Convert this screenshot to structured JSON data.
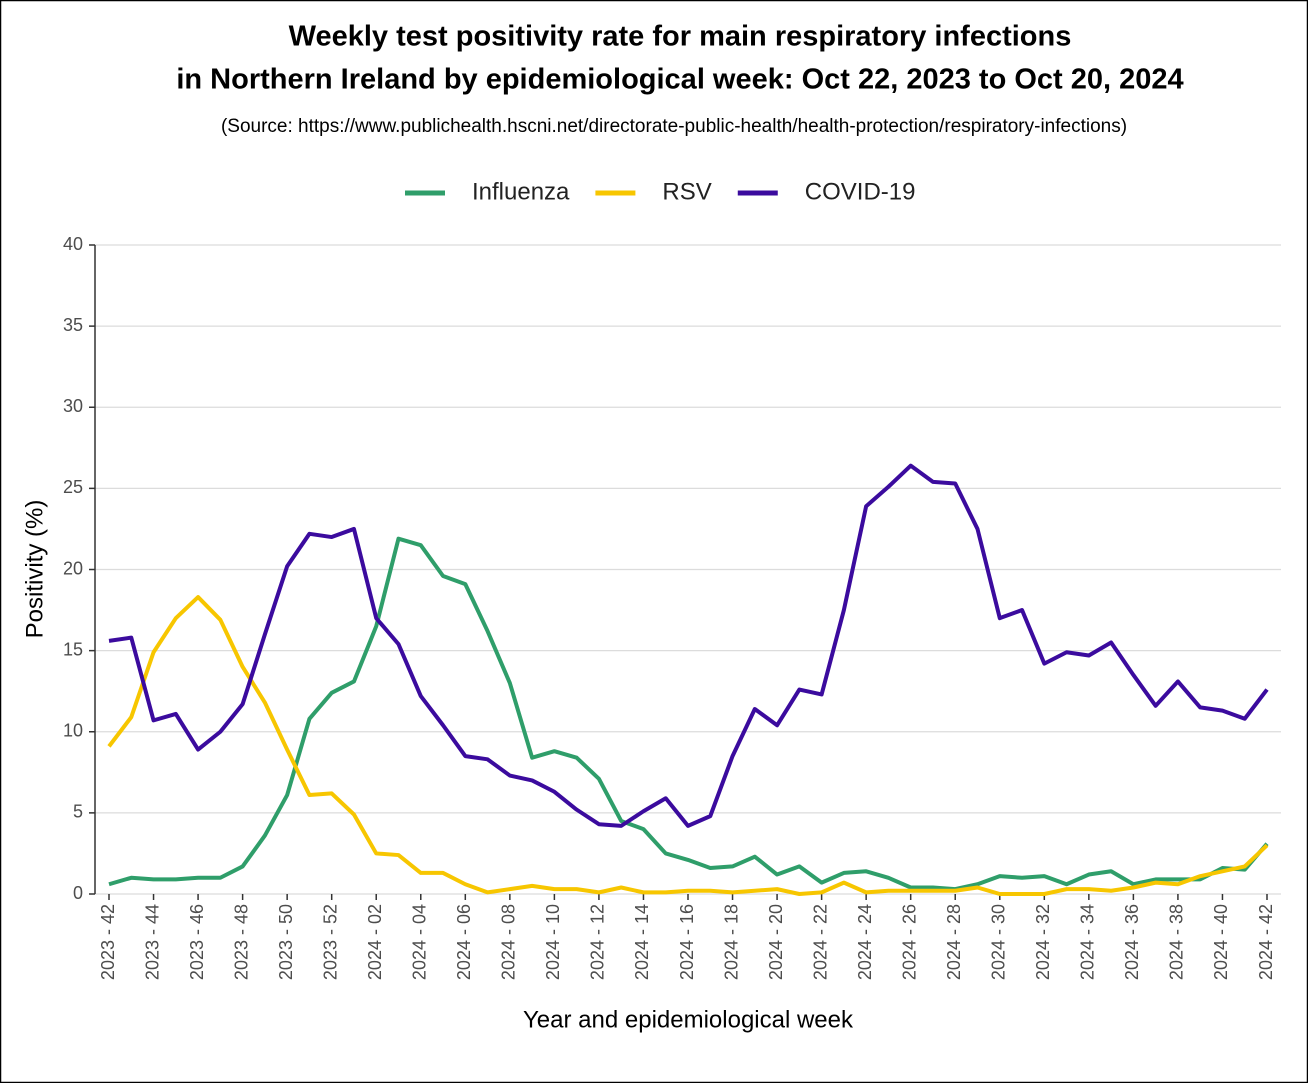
{
  "chart_data": {
    "type": "line",
    "title": [
      "Weekly test positivity rate for main respiratory infections",
      "in Northern Ireland by epidemiological week: Oct 22, 2023 to Oct 20, 2024"
    ],
    "subtitle": "(Source: https://www.publichealth.hscni.net/directorate-public-health/health-protection/respiratory-infections)",
    "x_label": "Year and epidemiological week",
    "y_label": "Positivity (%)",
    "categories": [
      "2023 - 42",
      null,
      "2023 - 44",
      null,
      "2023 - 46",
      null,
      "2023 - 48",
      null,
      "2023 - 50",
      null,
      "2023 - 52",
      null,
      "2024 - 02",
      null,
      "2024 - 04",
      null,
      "2024 - 06",
      null,
      "2024 - 08",
      null,
      "2024 - 10",
      null,
      "2024 - 12",
      null,
      "2024 - 14",
      null,
      "2024 - 16",
      null,
      "2024 - 18",
      null,
      "2024 - 20",
      null,
      "2024 - 22",
      null,
      "2024 - 24",
      null,
      "2024 - 26",
      null,
      "2024 - 28",
      null,
      "2024 - 30",
      null,
      "2024 - 32",
      null,
      "2024 - 34",
      null,
      "2024 - 36",
      null,
      "2024 - 38",
      null,
      "2024 - 40",
      null,
      "2024 - 42"
    ],
    "series": [
      {
        "name": "Influenza",
        "color": "#2f9e6a",
        "values": [
          0.6,
          1.0,
          0.9,
          0.9,
          1.0,
          1.0,
          1.7,
          3.6,
          6.1,
          10.8,
          12.4,
          13.1,
          16.5,
          21.9,
          21.5,
          19.6,
          19.1,
          16.2,
          13.0,
          8.4,
          8.8,
          8.4,
          7.1,
          4.5,
          4.0,
          2.5,
          2.1,
          1.6,
          1.7,
          2.3,
          1.2,
          1.7,
          0.7,
          1.3,
          1.4,
          1.0,
          0.4,
          0.4,
          0.3,
          0.6,
          1.1,
          1.0,
          1.1,
          0.6,
          1.2,
          1.4,
          0.6,
          0.9,
          0.9,
          0.9,
          1.6,
          1.5,
          3.1
        ]
      },
      {
        "name": "RSV",
        "color": "#f7c600",
        "values": [
          9.1,
          10.9,
          14.9,
          17.0,
          18.3,
          16.9,
          14.0,
          11.8,
          8.9,
          6.1,
          6.2,
          4.9,
          2.5,
          2.4,
          1.3,
          1.3,
          0.6,
          0.1,
          0.3,
          0.5,
          0.3,
          0.3,
          0.1,
          0.4,
          0.1,
          0.1,
          0.2,
          0.2,
          0.1,
          0.2,
          0.3,
          0.0,
          0.1,
          0.7,
          0.1,
          0.2,
          0.2,
          0.2,
          0.2,
          0.4,
          0.0,
          0.0,
          0.0,
          0.3,
          0.3,
          0.2,
          0.4,
          0.7,
          0.6,
          1.1,
          1.4,
          1.7,
          3.0
        ]
      },
      {
        "name": "COVID-19",
        "color": "#3b0b9e",
        "values": [
          15.6,
          15.8,
          10.7,
          11.1,
          8.9,
          10.0,
          11.7,
          16.0,
          20.2,
          22.2,
          22.0,
          22.5,
          17.0,
          15.4,
          12.2,
          10.4,
          8.5,
          8.3,
          7.3,
          7.0,
          6.3,
          5.2,
          4.3,
          4.2,
          5.1,
          5.9,
          4.2,
          4.8,
          8.5,
          11.4,
          10.4,
          12.6,
          12.3,
          17.5,
          23.9,
          25.1,
          26.4,
          25.4,
          25.3,
          22.5,
          17.0,
          17.5,
          14.2,
          14.9,
          14.7,
          15.5,
          13.5,
          11.6,
          13.1,
          11.5,
          11.3,
          10.8,
          12.6
        ]
      }
    ],
    "ylim": [
      0,
      40
    ],
    "yticks": [
      0,
      5,
      10,
      15,
      20,
      25,
      30,
      35,
      40
    ],
    "grid": true,
    "legend": "top"
  }
}
